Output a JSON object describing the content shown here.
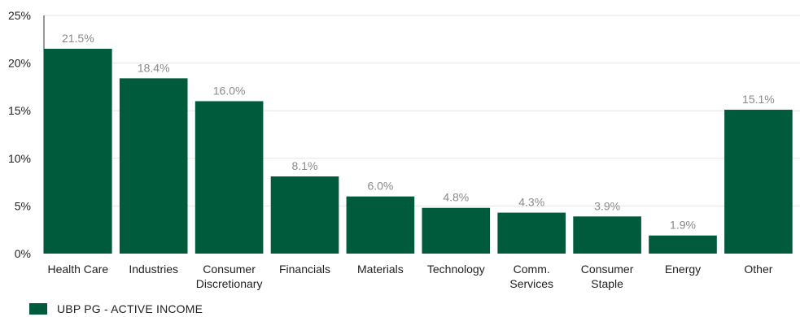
{
  "chart_data": {
    "type": "bar",
    "categories": [
      "Health Care",
      "Industries",
      "Consumer Discretionary",
      "Financials",
      "Materials",
      "Technology",
      "Comm. Services",
      "Consumer Staple",
      "Energy",
      "Other"
    ],
    "category_lines": [
      [
        "Health Care"
      ],
      [
        "Industries"
      ],
      [
        "Consumer",
        "Discretionary"
      ],
      [
        "Financials"
      ],
      [
        "Materials"
      ],
      [
        "Technology"
      ],
      [
        "Comm.",
        "Services"
      ],
      [
        "Consumer",
        "Staple"
      ],
      [
        "Energy"
      ],
      [
        "Other"
      ]
    ],
    "series": [
      {
        "name": "UBP PG - ACTIVE INCOME",
        "values": [
          21.5,
          18.4,
          16.0,
          8.1,
          6.0,
          4.8,
          4.3,
          3.9,
          1.9,
          15.1
        ],
        "labels": [
          "21.5%",
          "18.4%",
          "16.0%",
          "8.1%",
          "6.0%",
          "4.8%",
          "4.3%",
          "3.9%",
          "1.9%",
          "15.1%"
        ]
      }
    ],
    "yticks": [
      0,
      5,
      10,
      15,
      20,
      25
    ],
    "ytick_labels": [
      "0%",
      "5%",
      "10%",
      "15%",
      "20%",
      "25%"
    ],
    "ylim": [
      0,
      25
    ],
    "grid": true,
    "legend": "bottom-left",
    "colors": {
      "bar": "#005a3c",
      "grid": "#e6e6e6",
      "axis": "#333333",
      "data_label": "#8a8a8a"
    }
  },
  "legend": {
    "label": "UBP PG - ACTIVE INCOME"
  }
}
